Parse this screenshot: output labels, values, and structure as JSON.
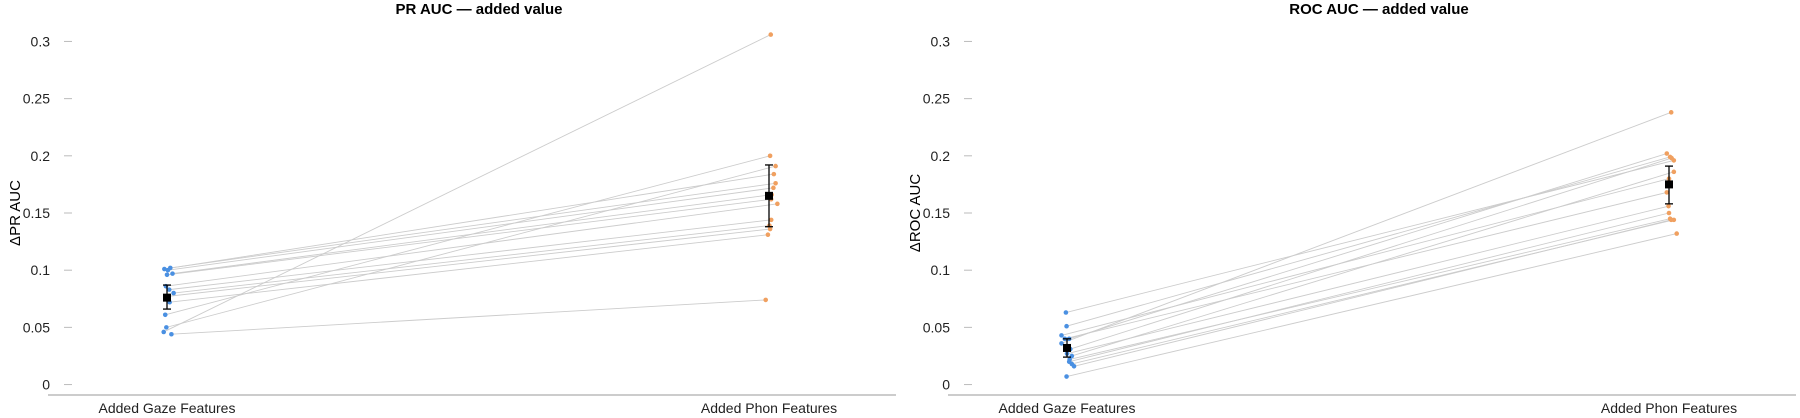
{
  "chart_data": [
    {
      "type": "scatter",
      "title": "PR AUC — added value",
      "xlabel": "",
      "ylabel": "ΔPR AUC",
      "categories": [
        "Added Gaze Features",
        "Added Phon Features"
      ],
      "ylim": [
        -0.01,
        0.31
      ],
      "yticks": [
        0,
        0.05,
        0.1,
        0.15,
        0.2,
        0.25,
        0.3
      ],
      "ytick_labels": [
        "0",
        "0.05",
        "0.1",
        "0.15",
        "0.2",
        "0.25",
        "0.3"
      ],
      "grid": false,
      "colors": {
        "gaze": "#4a90e2",
        "phon": "#f0a060",
        "line": "#cccccc",
        "mean": "#000000"
      },
      "gaze_values": [
        0.101,
        0.1,
        0.102,
        0.096,
        0.097,
        0.086,
        0.083,
        0.08,
        0.077,
        0.072,
        0.061,
        0.05,
        0.046,
        0.044
      ],
      "gaze_jitter": [
        -0.12,
        0.04,
        0.15,
        0.0,
        0.25,
        -0.05,
        0.1,
        0.3,
        -0.02,
        0.12,
        -0.08,
        -0.03,
        -0.15,
        0.2
      ],
      "phon_values": [
        0.306,
        0.2,
        0.191,
        0.184,
        0.176,
        0.172,
        0.166,
        0.162,
        0.158,
        0.144,
        0.139,
        0.136,
        0.131,
        0.074
      ],
      "phon_jitter": [
        0.08,
        0.05,
        0.3,
        0.22,
        0.3,
        0.2,
        0.12,
        0.1,
        0.38,
        0.1,
        0.02,
        0.05,
        -0.05,
        -0.15
      ],
      "pairs": [
        [
          0,
          3
        ],
        [
          1,
          5
        ],
        [
          2,
          4
        ],
        [
          3,
          7
        ],
        [
          4,
          6
        ],
        [
          5,
          8
        ],
        [
          6,
          9
        ],
        [
          7,
          10
        ],
        [
          8,
          11
        ],
        [
          9,
          12
        ],
        [
          10,
          1
        ],
        [
          11,
          2
        ],
        [
          12,
          0
        ],
        [
          13,
          13
        ]
      ],
      "mean": {
        "gaze": 0.076,
        "phon": 0.165
      },
      "error": {
        "gaze": [
          0.066,
          0.087
        ],
        "phon": [
          0.138,
          0.192
        ]
      }
    },
    {
      "type": "scatter",
      "title": "ROC AUC — added value",
      "xlabel": "",
      "ylabel": "ΔROC AUC",
      "categories": [
        "Added Gaze Features",
        "Added Phon Features"
      ],
      "ylim": [
        -0.01,
        0.31
      ],
      "yticks": [
        0,
        0.05,
        0.1,
        0.15,
        0.2,
        0.25,
        0.3
      ],
      "ytick_labels": [
        "0",
        "0.05",
        "0.1",
        "0.15",
        "0.2",
        "0.25",
        "0.3"
      ],
      "grid": false,
      "colors": {
        "gaze": "#4a90e2",
        "phon": "#f0a060",
        "line": "#cccccc",
        "mean": "#000000"
      },
      "gaze_values": [
        0.063,
        0.051,
        0.043,
        0.04,
        0.04,
        0.036,
        0.031,
        0.027,
        0.025,
        0.022,
        0.02,
        0.018,
        0.016,
        0.007
      ],
      "gaze_jitter": [
        -0.05,
        -0.02,
        -0.25,
        0.1,
        -0.1,
        -0.25,
        0.15,
        0.0,
        0.22,
        0.12,
        0.1,
        0.22,
        0.32,
        -0.02
      ],
      "phon_values": [
        0.238,
        0.202,
        0.199,
        0.198,
        0.196,
        0.186,
        0.18,
        0.168,
        0.156,
        0.15,
        0.145,
        0.144,
        0.144,
        0.132
      ],
      "phon_jitter": [
        0.1,
        -0.1,
        0.05,
        0.12,
        0.22,
        0.22,
        0.0,
        -0.1,
        -0.02,
        0.0,
        0.05,
        0.1,
        0.22,
        0.35
      ],
      "pairs": [
        [
          0,
          4
        ],
        [
          1,
          2
        ],
        [
          2,
          6
        ],
        [
          3,
          1
        ],
        [
          4,
          7
        ],
        [
          5,
          0
        ],
        [
          6,
          3
        ],
        [
          7,
          8
        ],
        [
          8,
          5
        ],
        [
          9,
          10
        ],
        [
          10,
          9
        ],
        [
          11,
          12
        ],
        [
          12,
          11
        ],
        [
          13,
          13
        ]
      ],
      "mean": {
        "gaze": 0.032,
        "phon": 0.175
      },
      "error": {
        "gaze": [
          0.024,
          0.04
        ],
        "phon": [
          0.158,
          0.191
        ]
      }
    }
  ]
}
